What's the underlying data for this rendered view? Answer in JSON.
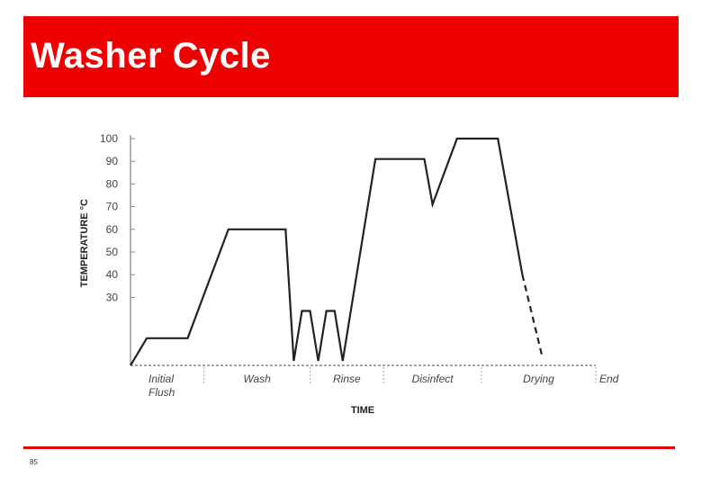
{
  "slide": {
    "title": "Washer Cycle",
    "page_number": "85"
  },
  "colors": {
    "banner": "#ee0000",
    "title_text": "#ffffff",
    "line": "#222222",
    "footer_rule": "#e00000"
  },
  "chart_data": {
    "type": "line",
    "xlabel": "TIME",
    "ylabel": "TEMPERATURE °C",
    "ylim": [
      0,
      100
    ],
    "yticks": [
      30,
      40,
      50,
      60,
      70,
      80,
      90,
      100
    ],
    "phases": [
      {
        "label_lines": [
          "Initial",
          "Flush"
        ],
        "start": 0,
        "end": 9
      },
      {
        "label_lines": [
          "Wash"
        ],
        "start": 9,
        "end": 22
      },
      {
        "label_lines": [
          "Rinse"
        ],
        "start": 22,
        "end": 31
      },
      {
        "label_lines": [
          "Disinfect"
        ],
        "start": 31,
        "end": 43
      },
      {
        "label_lines": [
          "Drying"
        ],
        "start": 43,
        "end": 57
      }
    ],
    "end_label": "End",
    "series": [
      {
        "style": "solid",
        "points": [
          [
            0,
            0
          ],
          [
            2,
            12
          ],
          [
            7,
            12
          ],
          [
            12,
            60
          ],
          [
            19,
            60
          ],
          [
            20,
            2
          ],
          [
            21,
            24
          ],
          [
            22,
            24
          ],
          [
            23,
            2
          ],
          [
            24,
            24
          ],
          [
            25,
            24
          ],
          [
            26,
            2
          ],
          [
            30,
            91
          ],
          [
            36,
            91
          ],
          [
            37,
            71
          ],
          [
            40,
            100
          ],
          [
            45,
            100
          ],
          [
            48,
            40
          ]
        ]
      },
      {
        "style": "dashed",
        "points": [
          [
            48,
            40
          ],
          [
            50.5,
            3
          ]
        ]
      }
    ]
  }
}
